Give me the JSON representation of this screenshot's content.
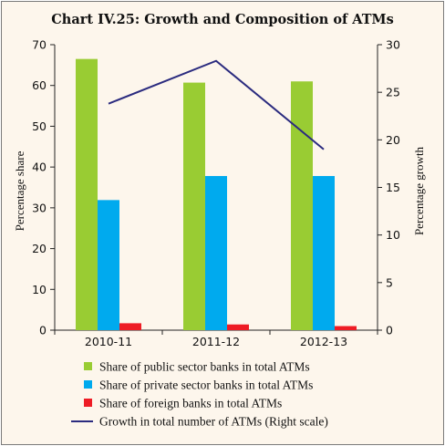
{
  "title": "Chart IV.25: Growth and Composition of ATMs",
  "chart_data": {
    "type": "bar",
    "categories": [
      "2010-11",
      "2011-12",
      "2012-13"
    ],
    "series": [
      {
        "name": "Share of public sector banks in total ATMs",
        "axis": "left",
        "kind": "bar",
        "color": "#99cc33",
        "values": [
          66.5,
          60.7,
          61.0
        ]
      },
      {
        "name": "Share of private sector banks in total ATMs",
        "axis": "left",
        "kind": "bar",
        "color": "#00aaee",
        "values": [
          31.9,
          37.8,
          37.8
        ]
      },
      {
        "name": "Share of foreign banks in total ATMs",
        "axis": "left",
        "kind": "bar",
        "color": "#ee1c25",
        "values": [
          1.7,
          1.4,
          1.0
        ]
      },
      {
        "name": "Growth in total number of ATMs (Right scale)",
        "axis": "right",
        "kind": "line",
        "color": "#2b2b7f",
        "values": [
          23.8,
          28.3,
          19.0
        ]
      }
    ],
    "ylabel": "Percentage share",
    "ylim": [
      0,
      70
    ],
    "yticks": [
      0,
      10,
      20,
      30,
      40,
      50,
      60,
      70
    ],
    "y2label": "Percentage growth",
    "y2lim": [
      0,
      30
    ],
    "y2ticks": [
      0,
      5,
      10,
      15,
      20,
      25,
      30
    ],
    "grid": false,
    "legend_position": "bottom"
  }
}
